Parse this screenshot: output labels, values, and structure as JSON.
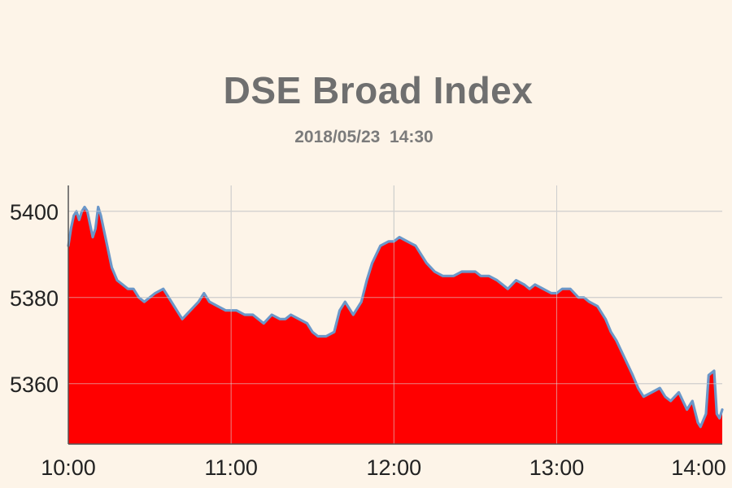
{
  "chart_data": {
    "type": "area",
    "title": "DSE Broad Index",
    "subtitle": "2018/05/23  14:30",
    "xlabel": "",
    "ylabel": "",
    "x_ticks": [
      "10:00",
      "11:00",
      "12:00",
      "13:00",
      "14:00"
    ],
    "y_ticks": [
      5360,
      5380,
      5400
    ],
    "xlim_minutes_from_open": [
      0,
      241
    ],
    "ylim": [
      5346,
      5406
    ],
    "grid": true,
    "legend": "none",
    "colors": {
      "fill": "#ff0000",
      "line": "#6b97c9",
      "grid": "#bcbcbc"
    },
    "series": [
      {
        "x": [
          0,
          1,
          2,
          3,
          4,
          5,
          6,
          7,
          8,
          9,
          10,
          11,
          12,
          14,
          16,
          18,
          20,
          22,
          24,
          26,
          28,
          30,
          32,
          35,
          38,
          40,
          42,
          45,
          48,
          50,
          52,
          55,
          58,
          60,
          62,
          65,
          68,
          70,
          72,
          75,
          78,
          80,
          82,
          85,
          88,
          90,
          92,
          95,
          98,
          100,
          102,
          105,
          108,
          110,
          112,
          115,
          118,
          120,
          122,
          125,
          128,
          130,
          132,
          135,
          138,
          140,
          142,
          145,
          148,
          150,
          152,
          155,
          158,
          160,
          162,
          165,
          168,
          170,
          172,
          175,
          178,
          180,
          182,
          185,
          188,
          190,
          192,
          195,
          198,
          200,
          202,
          205,
          208,
          210,
          212,
          215,
          218,
          220,
          222,
          225,
          228,
          230,
          232,
          233,
          235,
          236,
          238,
          239,
          240,
          241
        ],
        "values": [
          5392,
          5396,
          5399,
          5400,
          5398,
          5400,
          5401,
          5400,
          5397,
          5394,
          5396,
          5401,
          5399,
          5393,
          5387,
          5384,
          5383,
          5382,
          5382,
          5380,
          5379,
          5380,
          5381,
          5382,
          5379,
          5377,
          5375,
          5377,
          5379,
          5381,
          5379,
          5378,
          5377,
          5377,
          5377,
          5376,
          5376,
          5375,
          5374,
          5376,
          5375,
          5375,
          5376,
          5375,
          5374,
          5372,
          5371,
          5371,
          5372,
          5377,
          5379,
          5376,
          5379,
          5384,
          5388,
          5392,
          5393,
          5393,
          5394,
          5393,
          5392,
          5390,
          5388,
          5386,
          5385,
          5385,
          5385,
          5386,
          5386,
          5386,
          5385,
          5385,
          5384,
          5383,
          5382,
          5384,
          5383,
          5382,
          5383,
          5382,
          5381,
          5381,
          5382,
          5382,
          5380,
          5380,
          5379,
          5378,
          5375,
          5372,
          5370,
          5366,
          5362,
          5359,
          5357,
          5358,
          5359,
          5357,
          5356,
          5358,
          5354,
          5356,
          5351,
          5350,
          5353,
          5362,
          5363,
          5353,
          5352,
          5354
        ]
      }
    ]
  }
}
